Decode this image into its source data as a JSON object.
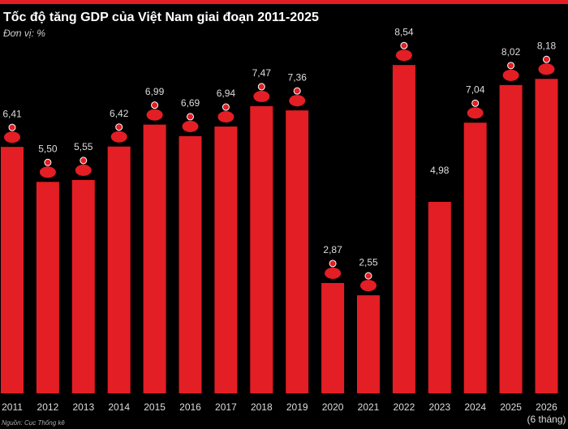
{
  "chart_data": {
    "type": "bar",
    "title": "Tốc độ tăng GDP của Việt Nam giai đoạn 2011-2025",
    "subtitle": "Đơn vị: %",
    "source": "Nguồn: Cục Thống kê",
    "categories": [
      "2011",
      "2012",
      "2013",
      "2014",
      "2015",
      "2016",
      "2017",
      "2018",
      "2019",
      "2020",
      "2021",
      "2022",
      "2023",
      "2024",
      "2025",
      "2026"
    ],
    "category_note": "(6 tháng)",
    "values": [
      6.41,
      5.5,
      5.55,
      6.42,
      6.99,
      6.69,
      6.94,
      7.47,
      7.36,
      2.87,
      2.55,
      8.54,
      4.98,
      7.04,
      8.02,
      8.18
    ],
    "value_labels": [
      "6,41",
      "5,50",
      "5,55",
      "6,42",
      "6,99",
      "6,69",
      "6,94",
      "7,47",
      "7,36",
      "2,87",
      "2,55",
      "8,54",
      "4,98",
      "7,04",
      "8,02",
      "8,18"
    ],
    "color": "#e31e24"
  }
}
